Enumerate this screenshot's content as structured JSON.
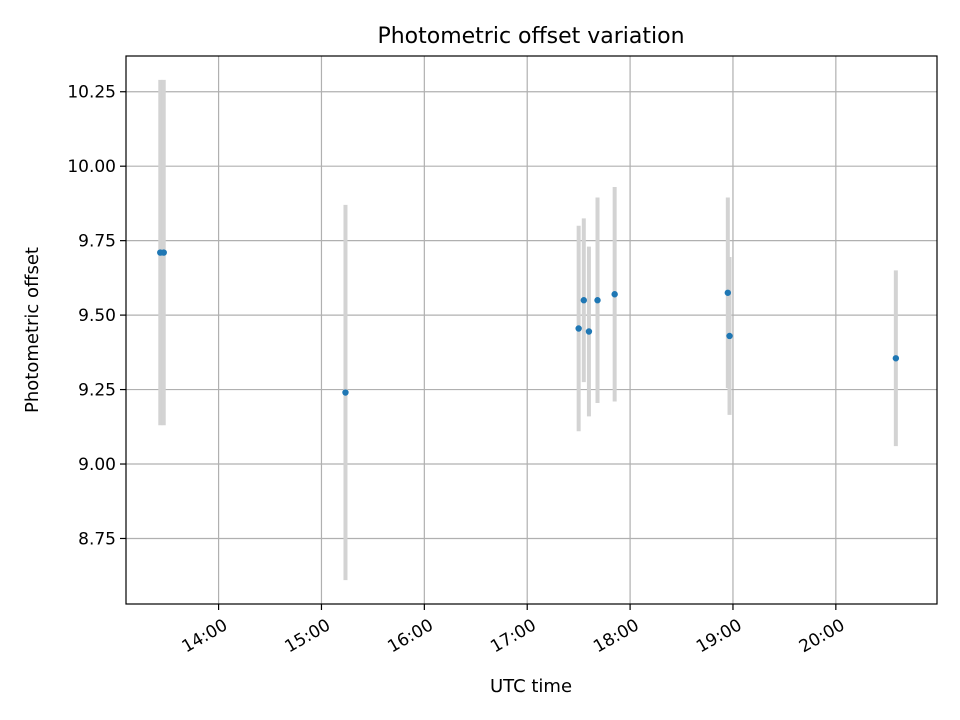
{
  "chart_data": {
    "type": "scatter",
    "title": "Photometric offset variation",
    "xlabel": "UTC time",
    "ylabel": "Photometric offset",
    "x_type": "time",
    "xlim": [
      "13:06",
      "20:59"
    ],
    "ylim": [
      8.53,
      10.37
    ],
    "x_ticks": [
      "14:00",
      "15:00",
      "16:00",
      "17:00",
      "18:00",
      "19:00",
      "20:00"
    ],
    "y_ticks": [
      "8.75",
      "9.00",
      "9.25",
      "9.50",
      "9.75",
      "10.00",
      "10.25"
    ],
    "grid": true,
    "marker_color": "#1f77b4",
    "errorbar_color": "#d3d3d3",
    "points": [
      {
        "x": "13:26",
        "y": 9.71,
        "yerr": 0.58
      },
      {
        "x": "13:28",
        "y": 9.71,
        "yerr": 0.58
      },
      {
        "x": "15:14",
        "y": 9.24,
        "yerr": 0.63
      },
      {
        "x": "17:30",
        "y": 9.455,
        "yerr": 0.345
      },
      {
        "x": "17:33",
        "y": 9.55,
        "yerr": 0.275
      },
      {
        "x": "17:36",
        "y": 9.445,
        "yerr": 0.285
      },
      {
        "x": "17:41",
        "y": 9.55,
        "yerr": 0.345
      },
      {
        "x": "17:51",
        "y": 9.57,
        "yerr": 0.36
      },
      {
        "x": "18:57",
        "y": 9.575,
        "yerr": 0.32
      },
      {
        "x": "18:58",
        "y": 9.43,
        "yerr": 0.265
      },
      {
        "x": "20:35",
        "y": 9.355,
        "yerr": 0.295
      }
    ]
  }
}
